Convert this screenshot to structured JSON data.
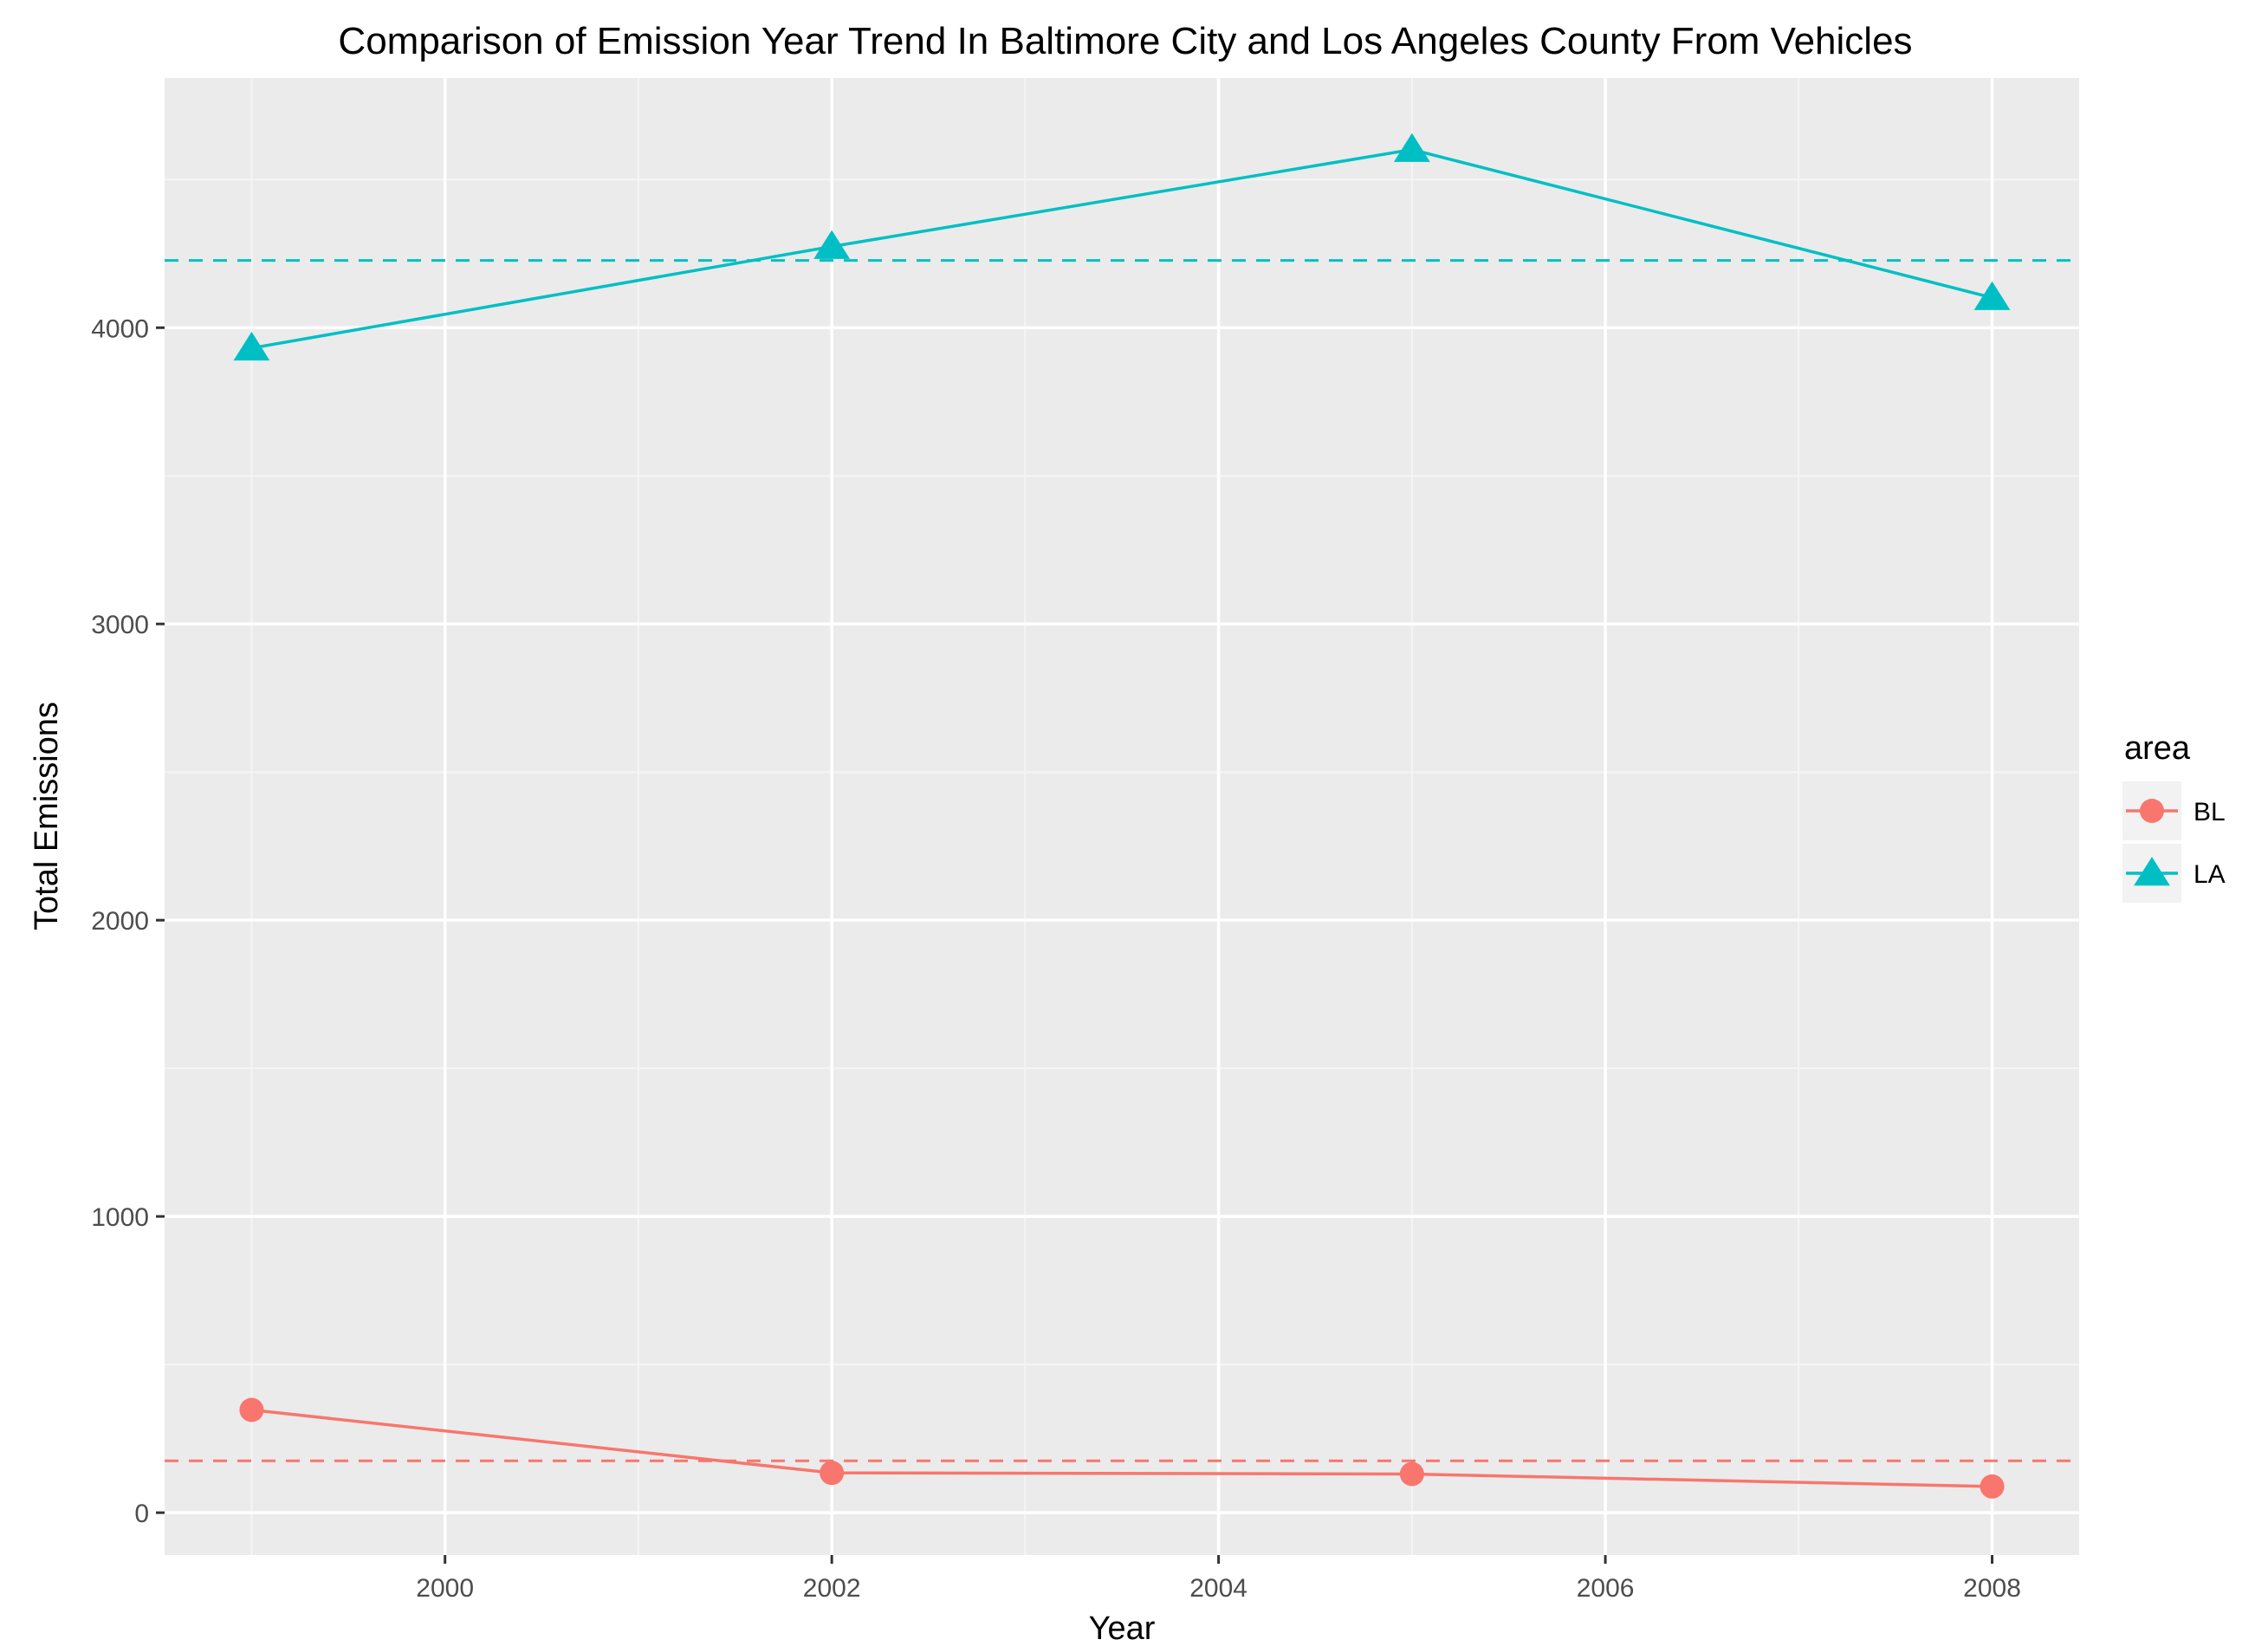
{
  "chart_data": {
    "type": "line",
    "title": "Comparison of Emission Year Trend In Baltimore City and Los Angeles County From Vehicles",
    "xlabel": "Year",
    "ylabel": "Total Emissions",
    "xlim": [
      1998.55,
      2008.45
    ],
    "ylim": [
      -143,
      4843
    ],
    "x_ticks": [
      2000,
      2002,
      2004,
      2006,
      2008
    ],
    "x_tick_labels": [
      "2000",
      "2002",
      "2004",
      "2006",
      "2008"
    ],
    "x_minor": [
      1999,
      2001,
      2003,
      2005,
      2007
    ],
    "y_ticks": [
      0,
      1000,
      2000,
      3000,
      4000
    ],
    "y_tick_labels": [
      "0",
      "1000",
      "2000",
      "3000",
      "4000"
    ],
    "y_minor": [
      500,
      1500,
      2500,
      3500,
      4500
    ],
    "grid": true,
    "legend": {
      "title": "area",
      "position": "right"
    },
    "series": [
      {
        "name": "BL",
        "color": "#F8766D",
        "marker": "circle",
        "x": [
          1999,
          2002,
          2005,
          2008
        ],
        "values": [
          346.82,
          134.31,
          130.43,
          88.28
        ],
        "mean_line": 174.96
      },
      {
        "name": "LA",
        "color": "#00BFC4",
        "marker": "triangle",
        "x": [
          1999,
          2002,
          2005,
          2008
        ],
        "values": [
          3931.12,
          4274.03,
          4601.41,
          4101.32
        ],
        "mean_line": 4226.97
      }
    ]
  }
}
